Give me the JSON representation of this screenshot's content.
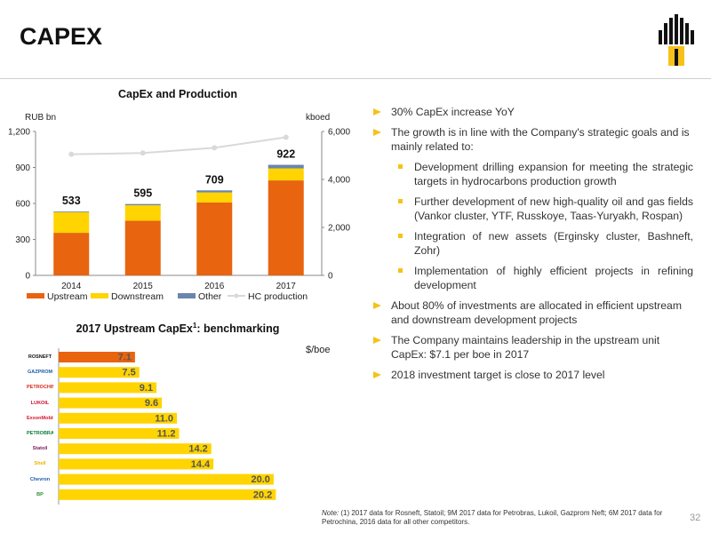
{
  "header": {
    "title": "CAPEX",
    "page_number": "32"
  },
  "colors": {
    "upstream": "#e8640f",
    "downstream": "#ffd400",
    "other": "#6a86ac",
    "hc_line": "#d9d9d9",
    "bench_highlight": "#e8640f",
    "bench_bar": "#ffd400",
    "bullet": "#f6c21a"
  },
  "chart_data": [
    {
      "type": "bar",
      "title": "CapEx and Production",
      "stacked": true,
      "categories": [
        "2014",
        "2015",
        "2016",
        "2017"
      ],
      "series": [
        {
          "name": "Upstream",
          "values": [
            355,
            456,
            608,
            792
          ]
        },
        {
          "name": "Downstream",
          "values": [
            172,
            129,
            84,
            100
          ]
        },
        {
          "name": "Other",
          "values": [
            6,
            10,
            17,
            30
          ]
        }
      ],
      "totals": [
        "533",
        "595",
        "709",
        "922"
      ],
      "ylabel": "RUB bn",
      "ylim": [
        0,
        1200
      ],
      "yticks": [
        "0",
        "300",
        "600",
        "900",
        "1,200"
      ],
      "y2label": "kboed",
      "y2lim": [
        0,
        6000
      ],
      "y2ticks": [
        "0",
        "2,000",
        "4,000",
        "6,000"
      ],
      "line_series": {
        "name": "HC production",
        "values": [
          5050,
          5100,
          5320,
          5760
        ]
      },
      "legend": "bottom"
    },
    {
      "type": "bar",
      "orientation": "horizontal",
      "title_main": "2017 Upstream CapEx",
      "title_sup": "1",
      "title_end": ": benchmarking",
      "unit": "$/boe",
      "companies": [
        "ROSNEFT",
        "GAZPROM NEFT",
        "PETROCHINA",
        "LUKOIL",
        "ExxonMobil",
        "PETROBRAS",
        "Statoil",
        "Shell",
        "Chevron",
        "BP"
      ],
      "values": [
        7.1,
        7.5,
        9.1,
        9.6,
        11.0,
        11.2,
        14.2,
        14.4,
        20.0,
        20.2
      ],
      "labels": [
        "7.1",
        "7.5",
        "9.1",
        "9.6",
        "11.0",
        "11.2",
        "14.2",
        "14.4",
        "20.0",
        "20.2"
      ],
      "xlim": [
        0,
        21
      ]
    }
  ],
  "bullets": [
    {
      "level": 1,
      "text": "30% CapEx increase YoY"
    },
    {
      "level": 1,
      "text": "The growth is in line with the Company's strategic goals and is mainly related to:"
    },
    {
      "level": 2,
      "text": "Development drilling expansion for meeting the strategic targets in hydrocarbons production growth"
    },
    {
      "level": 2,
      "text": "Further development of new high-quality oil and gas fields (Vankor cluster, YTF, Russkoye, Taas-Yuryakh, Rospan)"
    },
    {
      "level": 2,
      "text": "Integration of new assets (Erginsky cluster, Bashneft, Zohr)"
    },
    {
      "level": 2,
      "text": "Implementation of highly efficient projects in refining development"
    },
    {
      "level": 1,
      "text": "About 80% of investments are allocated in efficient upstream and downstream development projects"
    },
    {
      "level": 1,
      "text": "The Company maintains leadership in the upstream unit CapEx: $7.1 per boe in 2017"
    },
    {
      "level": 1,
      "text": "2018 investment target is close to 2017 level"
    }
  ],
  "note": {
    "label": "Note:",
    "text": " (1) 2017 data for Rosneft, Statoil; 9M 2017 data for Petrobras, Lukoil, Gazprom Neft; 6M 2017 data for Petrochina, 2016 data for all other competitors."
  }
}
